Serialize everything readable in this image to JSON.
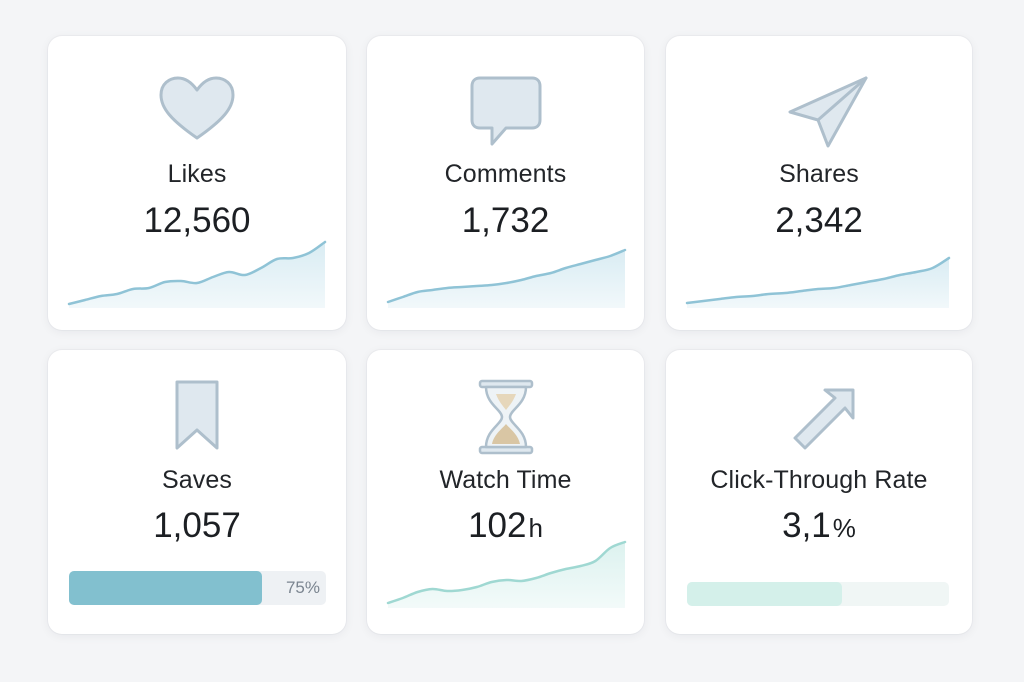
{
  "colors": {
    "icon_fill": "#dfe8ef",
    "icon_stroke": "#aebfcc",
    "spark_blue_line": "#8fc3d6",
    "spark_blue_area": "#d9ecf3",
    "spark_teal_line": "#9fd8d2",
    "spark_teal_area": "#dcf2ef",
    "saves_bar": "#82c0cf",
    "ctr_bar": "#d4f0ea"
  },
  "cards": {
    "likes": {
      "icon": "heart-icon",
      "label": "Likes",
      "value": "12,560",
      "trend": [
        2,
        6,
        10,
        12,
        17,
        18,
        24,
        25,
        23,
        29,
        34,
        31,
        38,
        47,
        48,
        53,
        64
      ]
    },
    "comments": {
      "icon": "comment-icon",
      "label": "Comments",
      "value": "1,732",
      "trend": [
        4,
        9,
        14,
        16,
        18,
        19,
        20,
        21,
        23,
        26,
        30,
        33,
        38,
        42,
        46,
        50,
        56
      ]
    },
    "shares": {
      "icon": "send-icon",
      "label": "Shares",
      "value": "2,342",
      "trend": [
        3,
        5,
        7,
        9,
        10,
        12,
        13,
        15,
        17,
        18,
        21,
        24,
        27,
        31,
        34,
        38,
        48
      ]
    },
    "saves": {
      "icon": "bookmark-icon",
      "label": "Saves",
      "value": "1,057",
      "progress": 0.75,
      "progress_text": "75%"
    },
    "watch": {
      "icon": "hourglass-icon",
      "label": "Watch Time",
      "value": "102",
      "unit": "h",
      "trend": [
        3,
        8,
        14,
        17,
        15,
        16,
        19,
        24,
        26,
        25,
        28,
        33,
        37,
        40,
        45,
        58,
        64
      ]
    },
    "ctr": {
      "icon": "arrow-up-right-icon",
      "label": "Click-Through Rate",
      "value": "3,1",
      "unit": "%",
      "progress": 0.59
    }
  }
}
